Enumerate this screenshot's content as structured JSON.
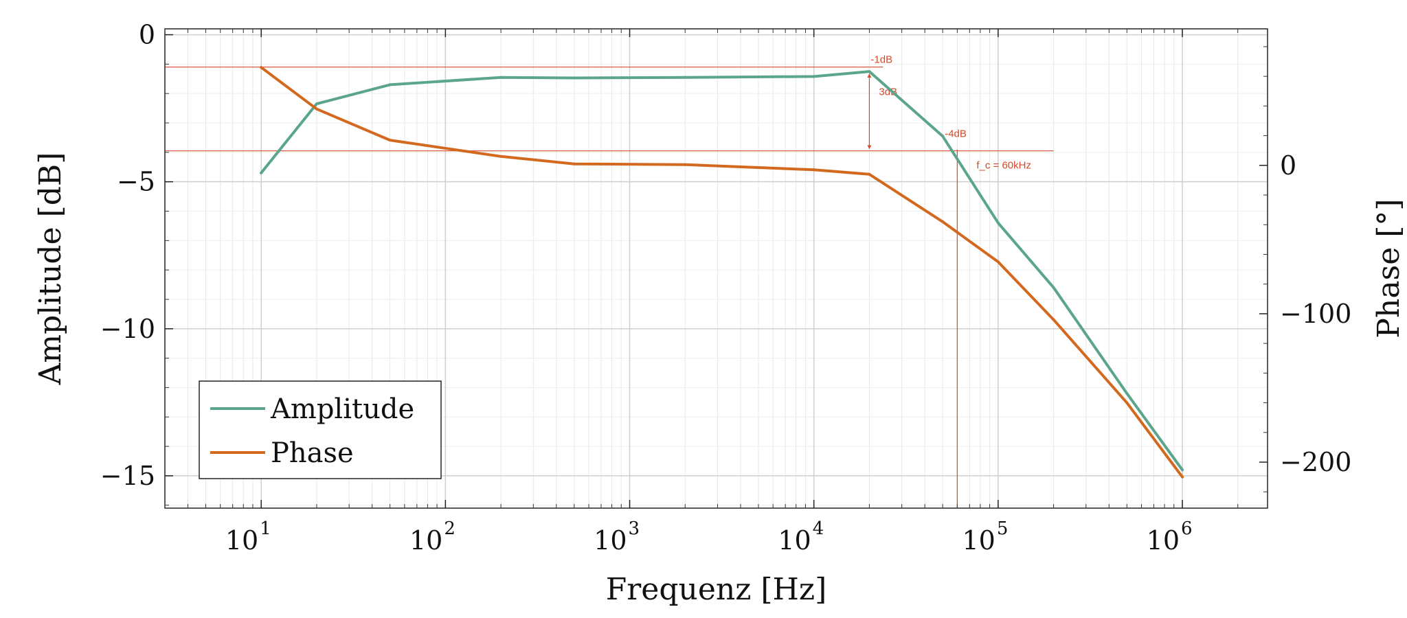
{
  "chart_data": {
    "type": "line",
    "xlabel": "Frequenz [Hz]",
    "ylabel": "Amplitude [dB]",
    "y2label": "Phase [°]",
    "xscale": "log",
    "xlim": [
      3,
      2900000
    ],
    "ylim": [
      -16.1,
      0.2
    ],
    "y2lim": [
      -231,
      92
    ],
    "grid": true,
    "legend_position": "bottom-left",
    "x_ticks": [
      {
        "base": "10",
        "exp": "1",
        "value": 10
      },
      {
        "base": "10",
        "exp": "2",
        "value": 100
      },
      {
        "base": "10",
        "exp": "3",
        "value": 1000
      },
      {
        "base": "10",
        "exp": "4",
        "value": 10000
      },
      {
        "base": "10",
        "exp": "5",
        "value": 100000
      },
      {
        "base": "10",
        "exp": "6",
        "value": 1000000
      }
    ],
    "y_ticks": [
      {
        "value": 0,
        "label": "0"
      },
      {
        "value": -5,
        "label": "−5"
      },
      {
        "value": -10,
        "label": "−10"
      },
      {
        "value": -15,
        "label": "−15"
      }
    ],
    "y2_ticks": [
      {
        "value": 0,
        "label": "0"
      },
      {
        "value": -100,
        "label": "−100"
      },
      {
        "value": -200,
        "label": "−200"
      }
    ],
    "series": [
      {
        "name": "Amplitude",
        "axis": "left",
        "color": "#5aa58c",
        "x": [
          10,
          20,
          50,
          200,
          500,
          2000,
          10000,
          20000,
          50000,
          100000,
          200000,
          500000,
          1000000
        ],
        "y": [
          -4.7,
          -2.35,
          -1.7,
          -1.45,
          -1.47,
          -1.45,
          -1.42,
          -1.25,
          -3.45,
          -6.4,
          -8.6,
          -12.2,
          -14.8
        ]
      },
      {
        "name": "Phase",
        "axis": "right",
        "color": "#d2691e",
        "x": [
          10,
          20,
          50,
          200,
          500,
          2000,
          10000,
          20000,
          50000,
          100000,
          200000,
          500000,
          1000000
        ],
        "y": [
          66,
          38,
          17,
          6,
          1,
          0.5,
          -3,
          -6,
          -38,
          -65,
          -104,
          -160,
          -210
        ]
      }
    ],
    "annotations": {
      "line_minus1db": {
        "y": -1.1,
        "x_end": 20000,
        "label": "-1dB"
      },
      "line_minus4db": {
        "y": -3.95,
        "x_end": 200000,
        "label": "-4dB"
      },
      "span_label": "3dB",
      "cutoff": {
        "x": 60000,
        "label": "f_c = 60kHz"
      }
    }
  }
}
